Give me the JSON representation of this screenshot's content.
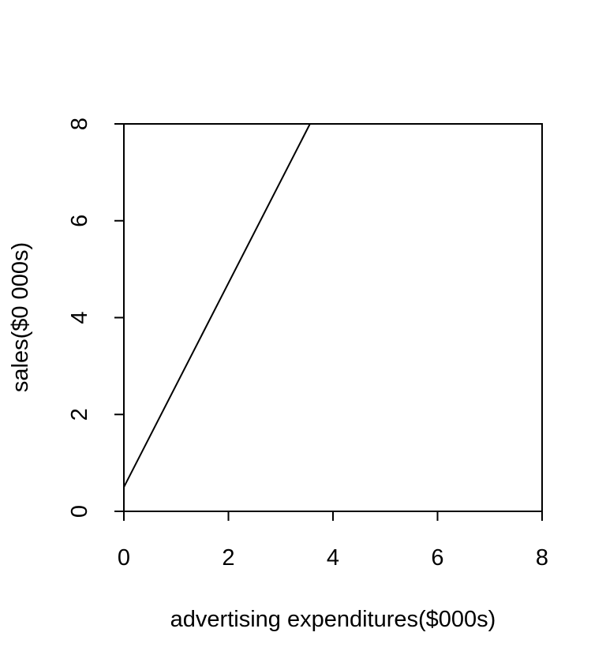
{
  "chart_data": {
    "type": "line",
    "title": "",
    "xlabel": "advertising expenditures($000s)",
    "ylabel": "sales($0 000s)",
    "xlim": [
      0,
      8
    ],
    "ylim": [
      0,
      8
    ],
    "x_ticks": [
      0,
      2,
      4,
      6,
      8
    ],
    "y_ticks": [
      0,
      2,
      4,
      6,
      8
    ],
    "x_tick_labels": [
      "0",
      "2",
      "4",
      "6",
      "8"
    ],
    "y_tick_labels": [
      "0",
      "2",
      "4",
      "6",
      "8"
    ],
    "grid": false,
    "box": true,
    "series": [
      {
        "x": [
          0,
          3.56
        ],
        "y": [
          0.5,
          8
        ],
        "color": "#000000"
      }
    ]
  }
}
